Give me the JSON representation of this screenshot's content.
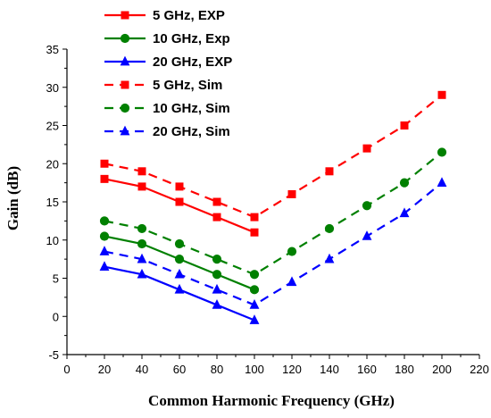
{
  "chart_data": {
    "type": "line",
    "xlabel": "Common Harmonic Frequency (GHz)",
    "ylabel": "Gain (dB)",
    "xlim": [
      0,
      220
    ],
    "ylim": [
      -5,
      35
    ],
    "xticks": [
      0,
      20,
      40,
      60,
      80,
      100,
      120,
      140,
      160,
      180,
      200,
      220
    ],
    "yticks": [
      -5,
      0,
      5,
      10,
      15,
      20,
      25,
      30,
      35
    ],
    "grid": false,
    "legend_position": "top-left",
    "series": [
      {
        "name": "5 GHz, EXP",
        "color": "#ff0000",
        "marker": "square",
        "dashed": false,
        "x": [
          20,
          40,
          60,
          80,
          100
        ],
        "y": [
          18,
          17,
          15,
          13,
          11
        ]
      },
      {
        "name": "10 GHz, Exp",
        "color": "#008000",
        "marker": "circle",
        "dashed": false,
        "x": [
          20,
          40,
          60,
          80,
          100
        ],
        "y": [
          10.5,
          9.5,
          7.5,
          5.5,
          3.5
        ]
      },
      {
        "name": "20 GHz, EXP",
        "color": "#0000ff",
        "marker": "triangle",
        "dashed": false,
        "x": [
          20,
          40,
          60,
          80,
          100
        ],
        "y": [
          6.5,
          5.5,
          3.5,
          1.5,
          -0.5
        ]
      },
      {
        "name": "5 GHz, Sim",
        "color": "#ff0000",
        "marker": "square",
        "dashed": true,
        "x": [
          20,
          40,
          60,
          80,
          100,
          120,
          140,
          160,
          180,
          200
        ],
        "y": [
          20,
          19,
          17,
          15,
          13,
          16,
          19,
          22,
          25,
          29
        ]
      },
      {
        "name": "10 GHz, Sim",
        "color": "#008000",
        "marker": "circle",
        "dashed": true,
        "x": [
          20,
          40,
          60,
          80,
          100,
          120,
          140,
          160,
          180,
          200
        ],
        "y": [
          12.5,
          11.5,
          9.5,
          7.5,
          5.5,
          8.5,
          11.5,
          14.5,
          17.5,
          21.5
        ]
      },
      {
        "name": "20 GHz, Sim",
        "color": "#0000ff",
        "marker": "triangle",
        "dashed": true,
        "x": [
          20,
          40,
          60,
          80,
          100,
          120,
          140,
          160,
          180,
          200
        ],
        "y": [
          8.5,
          7.5,
          5.5,
          3.5,
          1.5,
          4.5,
          7.5,
          10.5,
          13.5,
          17.5
        ]
      }
    ]
  }
}
